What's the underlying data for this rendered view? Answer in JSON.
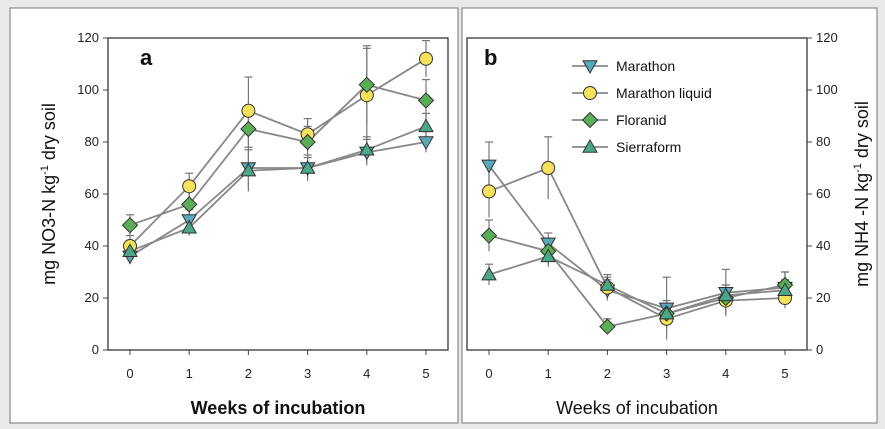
{
  "colors": {
    "background": "#e9e9e9",
    "panel": "#ffffff",
    "frame": "#8a8a8a",
    "line": "#888888",
    "errorbar": "#777777",
    "marathon": "#5aa8b8",
    "marathon_liquid": "#f4e35a",
    "floranid": "#5aae58",
    "sierraform": "#4aa888"
  },
  "legend": {
    "marathon": "Marathon",
    "marathon_liquid": "Marathon liquid",
    "floranid": "Floranid",
    "sierraform": "Sierraform"
  },
  "chart_data": [
    {
      "panel": "a",
      "type": "line",
      "xlabel": "Weeks of incubation",
      "ylabel": "mg NO3-N kg⁻¹ dry soil",
      "ylabel_parts": [
        "mg NO3-N kg",
        "-1",
        " dry soil"
      ],
      "y_axis_side": "left",
      "x": [
        0,
        1,
        2,
        3,
        4,
        5
      ],
      "x_tick_labels": [
        "0",
        "1",
        "2",
        "3",
        "4",
        "5"
      ],
      "ylim": [
        0,
        120
      ],
      "y_ticks": [
        0,
        20,
        40,
        60,
        80,
        100,
        120
      ],
      "series": [
        {
          "name": "Marathon",
          "marker": "triangle-down",
          "values": [
            36,
            50,
            70,
            70,
            76,
            80
          ],
          "errors": [
            3,
            4,
            8,
            5,
            5,
            4
          ]
        },
        {
          "name": "Marathon liquid",
          "marker": "circle",
          "values": [
            40,
            63,
            92,
            83,
            98,
            112
          ],
          "errors": [
            4,
            5,
            13,
            6,
            18,
            7
          ]
        },
        {
          "name": "Floranid",
          "marker": "diamond",
          "values": [
            48,
            56,
            85,
            80,
            102,
            96
          ],
          "errors": [
            4,
            5,
            7,
            6,
            15,
            8
          ]
        },
        {
          "name": "Sierraform",
          "marker": "triangle-up",
          "values": [
            38,
            47,
            69,
            70,
            77,
            86
          ],
          "errors": [
            3,
            3,
            8,
            4,
            5,
            5
          ]
        }
      ]
    },
    {
      "panel": "b",
      "type": "line",
      "xlabel": "Weeks of incubation",
      "ylabel": "mg NH4 -N kg⁻¹ dry soil",
      "ylabel_parts": [
        "mg NH4 -N kg",
        "-1",
        " dry soil"
      ],
      "y_axis_side": "right",
      "legend_position": "top-right",
      "x": [
        0,
        1,
        2,
        3,
        4,
        5
      ],
      "x_tick_labels": [
        "0",
        "1",
        "2",
        "3",
        "4",
        "5"
      ],
      "ylim": [
        0,
        120
      ],
      "y_ticks": [
        0,
        20,
        40,
        60,
        80,
        100,
        120
      ],
      "series": [
        {
          "name": "Marathon",
          "marker": "triangle-down",
          "values": [
            71,
            41,
            23,
            16,
            22,
            24
          ],
          "errors": [
            9,
            4,
            4,
            12,
            9,
            6
          ]
        },
        {
          "name": "Marathon liquid",
          "marker": "circle",
          "values": [
            61,
            70,
            24,
            12,
            19,
            20
          ],
          "errors": [
            10,
            12,
            4,
            5,
            5,
            4
          ]
        },
        {
          "name": "Floranid",
          "marker": "diamond",
          "values": [
            44,
            38,
            9,
            14,
            20,
            25
          ],
          "errors": [
            6,
            5,
            3,
            5,
            5,
            5
          ]
        },
        {
          "name": "Sierraform",
          "marker": "triangle-up",
          "values": [
            29,
            36,
            25,
            14,
            21,
            23
          ],
          "errors": [
            4,
            4,
            4,
            4,
            4,
            4
          ]
        }
      ]
    }
  ]
}
